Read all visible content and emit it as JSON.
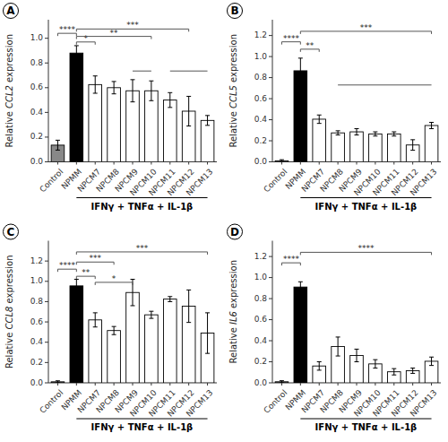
{
  "chart_data": [
    {
      "type": "bar",
      "title": "A",
      "ylabel": "Relative CCL2 expression",
      "ylim": [
        0,
        1.15
      ],
      "yticks": [
        {
          "value": 0.0,
          "label": "0.0"
        },
        0.2,
        0.4,
        0.6,
        0.8,
        {
          "value": 1.0,
          "label": "1.0"
        }
      ],
      "categories": [
        "Control",
        "NPMM",
        "NPCM7",
        "NPCM8",
        "NPCM9",
        "NPCM10",
        "NPCM11",
        "NPCM12",
        "NPCM13"
      ],
      "values": [
        0.135,
        0.88,
        0.625,
        0.6,
        0.575,
        0.575,
        0.5,
        0.41,
        0.335
      ],
      "errors": [
        0.04,
        0.06,
        0.07,
        0.05,
        0.09,
        0.08,
        0.06,
        0.12,
        0.04
      ],
      "colors": [
        "#888888",
        "#000000",
        "#ffffff",
        "#ffffff",
        "#ffffff",
        "#ffffff",
        "#ffffff",
        "#ffffff",
        "#ffffff"
      ],
      "grid": false,
      "annotations": [
        {
          "text": "****",
          "x1": "Control",
          "x2": "NPMM",
          "y": 1.04
        },
        {
          "text": "*",
          "x1": "NPMM",
          "x2": "NPCM7",
          "y": 0.97
        },
        {
          "text": "**",
          "x1": "NPMM",
          "x2": "NPCM10",
          "y": 1.015
        },
        {
          "text": "***",
          "x1": "NPMM",
          "x2": "NPCM12",
          "y": 1.075
        },
        {
          "x1": "NPCM9",
          "x2": "NPCM10",
          "y": 0.735
        },
        {
          "x1": "NPCM11",
          "x2": "NPCM13",
          "y": 0.735
        },
        {
          "text": "IFNγ + TNFα + IL-1β",
          "x1": "NPMM",
          "x2": "NPCM13"
        }
      ]
    },
    {
      "type": "bar",
      "title": "B",
      "ylabel": "Relative CCL5 expression",
      "ylim": [
        0,
        1.35
      ],
      "yticks": [
        {
          "value": 0.0,
          "label": "0.0"
        },
        0.2,
        0.4,
        0.6,
        0.8,
        {
          "value": 1.0,
          "label": "1.0"
        },
        1.2
      ],
      "categories": [
        "Control",
        "NPMM",
        "NPCM7",
        "NPCM8",
        "NPCM9",
        "NPCM10",
        "NPCM11",
        "NPCM12",
        "NPCM13"
      ],
      "values": [
        0.01,
        0.865,
        0.405,
        0.275,
        0.285,
        0.265,
        0.265,
        0.16,
        0.345
      ],
      "errors": [
        0.01,
        0.12,
        0.04,
        0.02,
        0.03,
        0.02,
        0.02,
        0.05,
        0.03
      ],
      "colors": [
        "#888888",
        "#000000",
        "#ffffff",
        "#ffffff",
        "#ffffff",
        "#ffffff",
        "#ffffff",
        "#ffffff",
        "#ffffff"
      ],
      "grid": false,
      "annotations": [
        {
          "text": "****",
          "x1": "Control",
          "x2": "NPMM",
          "y": 1.14
        },
        {
          "text": "**",
          "x1": "NPMM",
          "x2": "NPCM7",
          "y": 1.07
        },
        {
          "text": "***",
          "x1": "NPMM",
          "x2": "NPCM13",
          "y": 1.24
        },
        {
          "x1": "NPCM8",
          "x2": "NPCM13",
          "y": 0.73
        },
        {
          "text": "IFNγ + TNFα + IL-1β",
          "x1": "NPMM",
          "x2": "NPCM13"
        }
      ]
    },
    {
      "type": "bar",
      "title": "C",
      "ylabel": "Relative CCL8 expression",
      "ylim": [
        0,
        1.4
      ],
      "yticks": [
        {
          "value": 0.0,
          "label": "0.0"
        },
        0.2,
        0.4,
        0.6,
        0.8,
        {
          "value": 1.0,
          "label": "1.0"
        },
        1.2
      ],
      "categories": [
        "Control",
        "NPMM",
        "NPCM7",
        "NPCM8",
        "NPCM9",
        "NPCM10",
        "NPCM11",
        "NPCM12",
        "NPCM13"
      ],
      "values": [
        0.01,
        0.955,
        0.62,
        0.515,
        0.89,
        0.67,
        0.825,
        0.755,
        0.49
      ],
      "errors": [
        0.01,
        0.065,
        0.07,
        0.04,
        0.13,
        0.035,
        0.025,
        0.16,
        0.2
      ],
      "colors": [
        "#888888",
        "#000000",
        "#ffffff",
        "#ffffff",
        "#ffffff",
        "#ffffff",
        "#ffffff",
        "#ffffff",
        "#ffffff"
      ],
      "grid": false,
      "annotations": [
        {
          "text": "****",
          "x1": "Control",
          "x2": "NPMM",
          "y": 1.12
        },
        {
          "text": "**",
          "x1": "NPMM",
          "x2": "NPCM7",
          "y": 1.05
        },
        {
          "text": "***",
          "x1": "NPMM",
          "x2": "NPCM8",
          "y": 1.19
        },
        {
          "text": "*",
          "x1": "NPCM7",
          "x2": "NPCM9",
          "y": 0.99
        },
        {
          "text": "***",
          "x1": "NPMM",
          "x2": "NPCM13",
          "y": 1.29
        },
        {
          "text": "IFNγ + TNFα + IL-1β",
          "x1": "NPMM",
          "x2": "NPCM13"
        }
      ]
    },
    {
      "type": "bar",
      "title": "D",
      "ylabel": "Relative IL6 expression",
      "ylim": [
        0,
        1.35
      ],
      "yticks": [
        {
          "value": 0.0,
          "label": "0.0"
        },
        0.2,
        0.4,
        0.6,
        0.8,
        {
          "value": 1.0,
          "label": "1.0"
        },
        1.2
      ],
      "categories": [
        "Control",
        "NPMM",
        "NPCM7",
        "NPCM8",
        "NPCM9",
        "NPCM10",
        "NPCM11",
        "NPCM12",
        "NPCM13"
      ],
      "values": [
        0.01,
        0.91,
        0.16,
        0.345,
        0.26,
        0.18,
        0.105,
        0.115,
        0.205
      ],
      "errors": [
        0.01,
        0.05,
        0.04,
        0.09,
        0.06,
        0.04,
        0.03,
        0.025,
        0.04
      ],
      "colors": [
        "#888888",
        "#000000",
        "#ffffff",
        "#ffffff",
        "#ffffff",
        "#ffffff",
        "#ffffff",
        "#ffffff",
        "#ffffff"
      ],
      "grid": false,
      "annotations": [
        {
          "text": "****",
          "x1": "Control",
          "x2": "NPMM",
          "y": 1.14
        },
        {
          "text": "****",
          "x1": "NPMM",
          "x2": "NPCM13",
          "y": 1.24
        },
        {
          "text": "IFNγ + TNFα + IL-1β",
          "x1": "NPMM",
          "x2": "NPCM13"
        }
      ]
    }
  ]
}
